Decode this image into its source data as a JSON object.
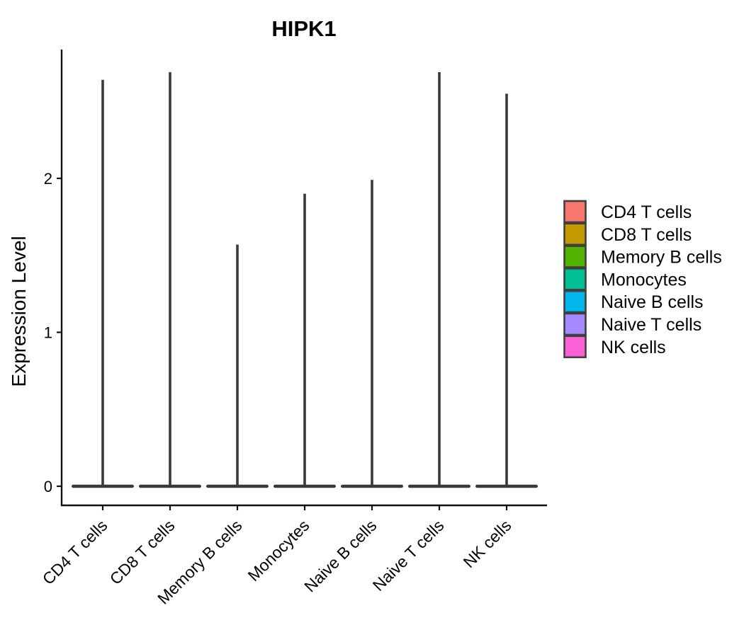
{
  "title": "HIPK1",
  "colors": {
    "background": "#ffffff",
    "violin_outline": "#3a3a3c",
    "axis_line": "#111111",
    "text": "#000000",
    "legend_key_border": "#3f3f3f"
  },
  "chart_data": {
    "type": "violin",
    "title": "HIPK1",
    "xlabel": "",
    "ylabel": "Expression Level",
    "ylim": [
      -0.12,
      2.95
    ],
    "yticks": [
      0,
      1,
      2
    ],
    "grid": false,
    "legend_position": "right",
    "categories": [
      "CD4 T cells",
      "CD8 T cells",
      "Memory B cells",
      "Monocytes",
      "Naive B cells",
      "Naive T cells",
      "NK cells"
    ],
    "series": [
      {
        "name": "CD4 T cells",
        "color": "#F8766D",
        "min_expression": 0,
        "max_expression": 2.64
      },
      {
        "name": "CD8 T cells",
        "color": "#C49A00",
        "min_expression": 0,
        "max_expression": 2.69
      },
      {
        "name": "Memory B cells",
        "color": "#53B400",
        "min_expression": 0,
        "max_expression": 1.57
      },
      {
        "name": "Monocytes",
        "color": "#00C094",
        "min_expression": 0,
        "max_expression": 1.9
      },
      {
        "name": "Naive B cells",
        "color": "#00B6EB",
        "min_expression": 0,
        "max_expression": 1.99
      },
      {
        "name": "Naive T cells",
        "color": "#A58AFF",
        "min_expression": 0,
        "max_expression": 2.69
      },
      {
        "name": "NK cells",
        "color": "#FB61D7",
        "min_expression": 0,
        "max_expression": 2.55
      }
    ],
    "legend_labels": [
      "CD4 T cells",
      "CD8 T cells",
      "Memory B cells",
      "Monocytes",
      "Naive B cells",
      "Naive T cells",
      "NK cells"
    ]
  }
}
